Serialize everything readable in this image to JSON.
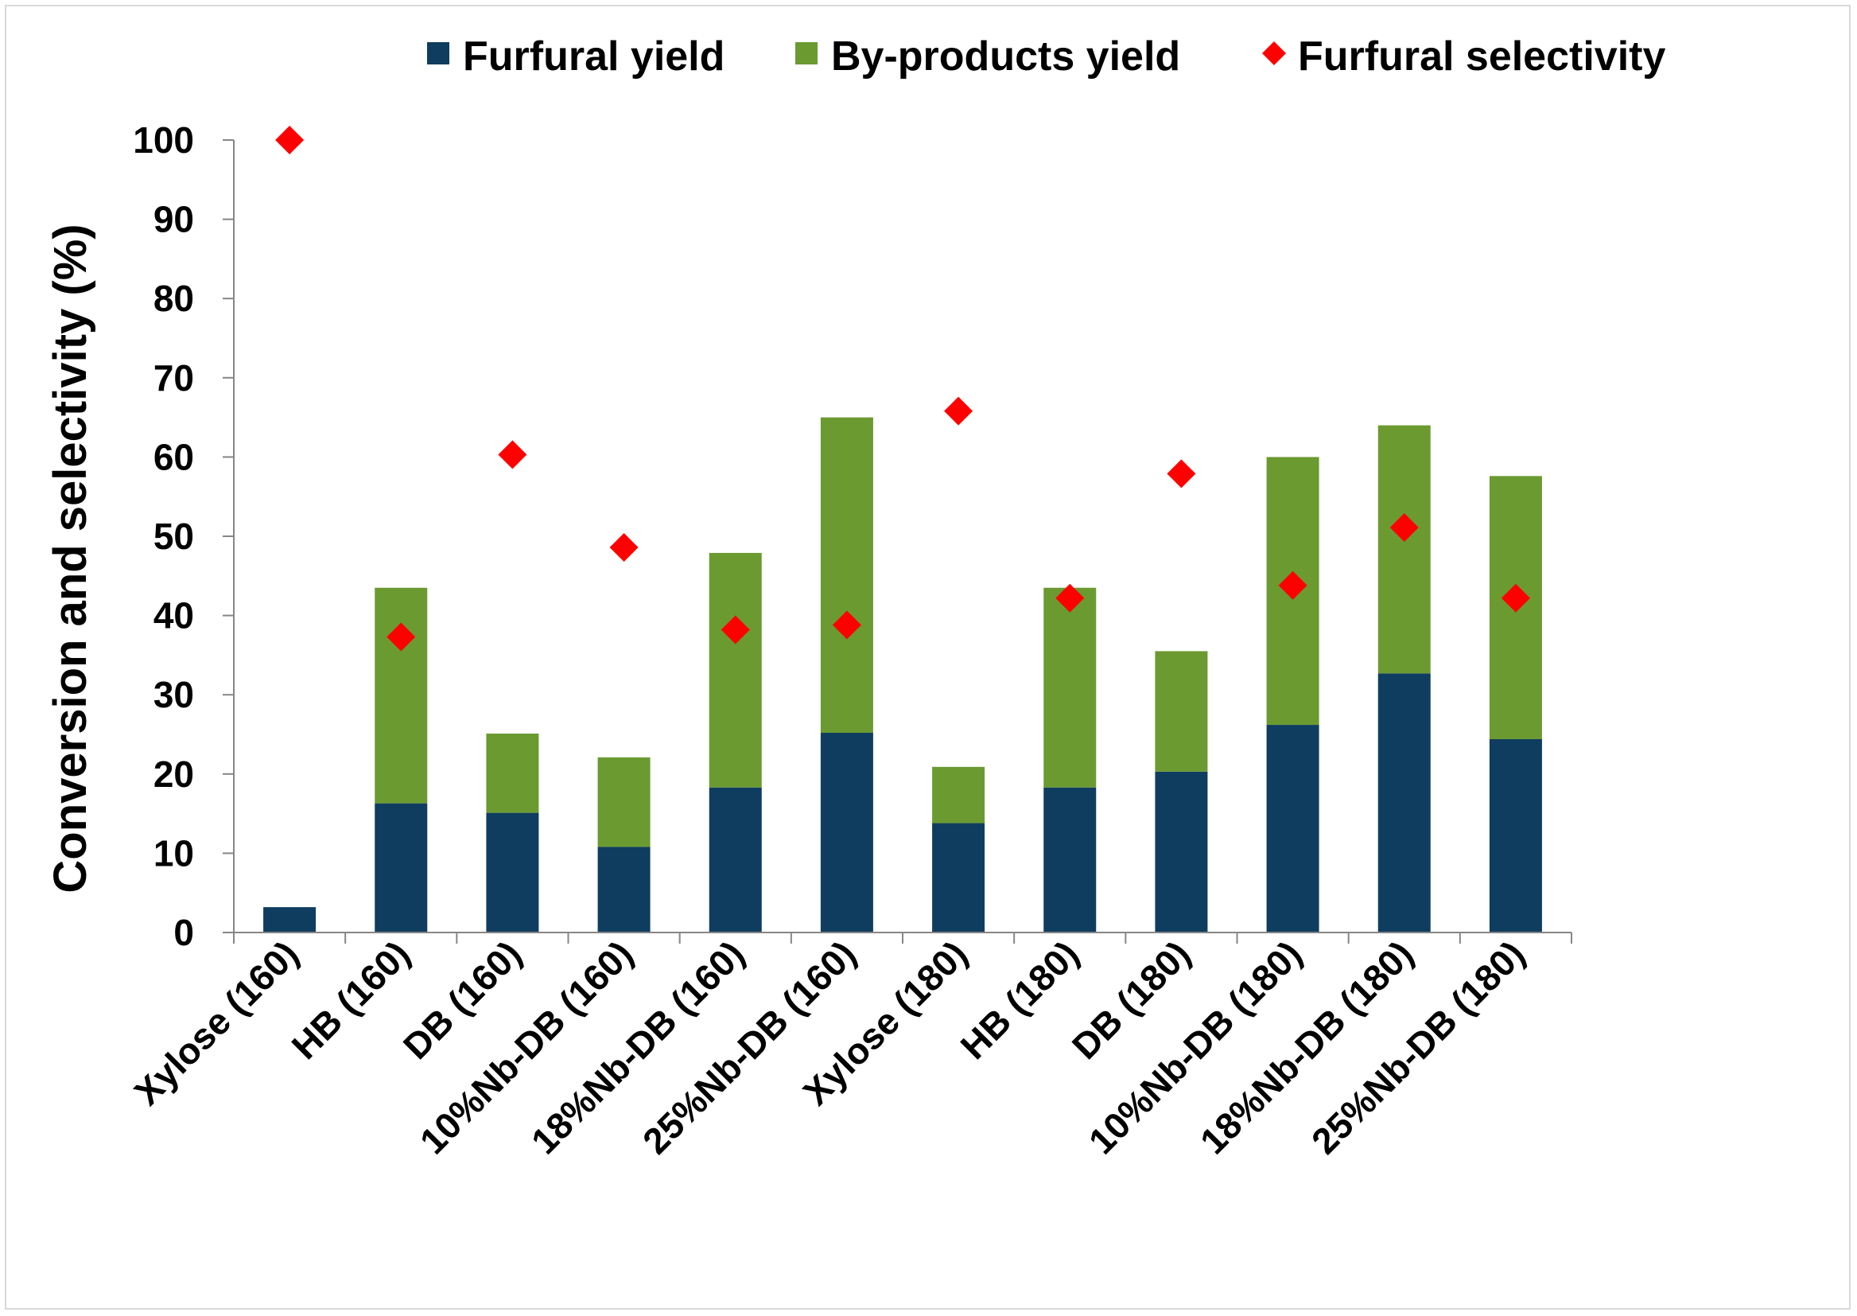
{
  "chart_data": {
    "type": "bar",
    "stacked": true,
    "title": "",
    "xlabel": "",
    "ylabel": "Conversion and selectivity (%)",
    "ylim": [
      0,
      100
    ],
    "yticks": [
      "0",
      "10",
      "20",
      "30",
      "40",
      "50",
      "60",
      "70",
      "80",
      "90",
      "100"
    ],
    "categories": [
      "Xylose (160)",
      "HB (160)",
      "DB (160)",
      "10%Nb-DB (160)",
      "18%Nb-DB (160)",
      "25%Nb-DB (160)",
      "Xylose (180)",
      "HB (180)",
      "DB (180)",
      "10%Nb-DB (180)",
      "18%Nb-DB (180)",
      "25%Nb-DB (180)"
    ],
    "series": [
      {
        "name": "Furfural yield",
        "kind": "bar",
        "color": "#0f3d5f",
        "values": [
          3.2,
          16.3,
          15.1,
          10.8,
          18.3,
          25.2,
          13.8,
          18.3,
          20.3,
          26.2,
          32.7,
          24.4
        ]
      },
      {
        "name": "By-products yield",
        "kind": "bar",
        "color": "#6b9a31",
        "values": [
          0,
          27.2,
          10.0,
          11.3,
          29.6,
          39.8,
          7.1,
          25.2,
          15.2,
          33.8,
          31.3,
          33.2
        ]
      },
      {
        "name": "Furfural selectivity",
        "kind": "marker",
        "color": "#ff0000",
        "values": [
          100,
          37.3,
          60.3,
          48.6,
          38.2,
          38.8,
          65.8,
          42.2,
          57.9,
          43.8,
          51.1,
          42.2
        ]
      }
    ],
    "legend": {
      "position": "top",
      "items": [
        "Furfural yield",
        "By-products yield",
        "Furfural selectivity"
      ]
    },
    "grid": false
  }
}
